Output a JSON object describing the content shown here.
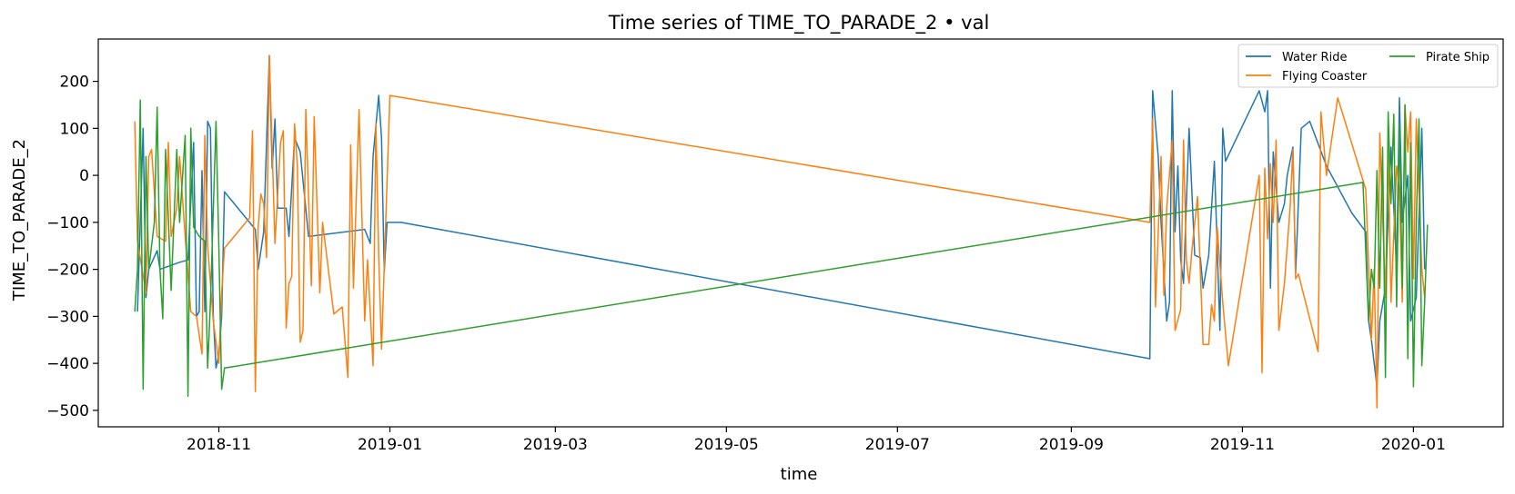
{
  "chart_data": {
    "type": "line",
    "title": "Time series of TIME_TO_PARADE_2 • val",
    "xlabel": "time",
    "ylabel": "TIME_TO_PARADE_2",
    "xlim": [
      "2018-09-19",
      "2020-02-02"
    ],
    "ylim": [
      -535,
      290
    ],
    "x_ticks": [
      "2018-11-01",
      "2019-01-01",
      "2019-03-01",
      "2019-05-01",
      "2019-07-01",
      "2019-09-01",
      "2019-11-01",
      "2020-01-01"
    ],
    "x_tick_labels": [
      "2018-11",
      "2019-01",
      "2019-03",
      "2019-05",
      "2019-07",
      "2019-09",
      "2019-11",
      "2020-01"
    ],
    "y_ticks": [
      200,
      100,
      0,
      -100,
      -200,
      -300,
      -400,
      -500
    ],
    "y_tick_labels": [
      "200",
      "100",
      "0",
      "−100",
      "−200",
      "−300",
      "−400",
      "−500"
    ],
    "legend_position": "top-right",
    "legend_columns": 2,
    "series": [
      {
        "name": "Water Ride",
        "color": "#1f77b4",
        "points": [
          [
            "2018-10-03",
            -290
          ],
          [
            "2018-10-05",
            100
          ],
          [
            "2018-10-06",
            -260
          ],
          [
            "2018-10-07",
            -200
          ],
          [
            "2018-10-10",
            -160
          ],
          [
            "2018-10-11",
            -200
          ],
          [
            "2018-10-18",
            -185
          ],
          [
            "2018-10-21",
            -180
          ],
          [
            "2018-10-23",
            70
          ],
          [
            "2018-10-24",
            -300
          ],
          [
            "2018-10-25",
            -290
          ],
          [
            "2018-10-26",
            10
          ],
          [
            "2018-10-27",
            -290
          ],
          [
            "2018-10-28",
            115
          ],
          [
            "2018-10-29",
            100
          ],
          [
            "2018-10-30",
            -300
          ],
          [
            "2018-10-31",
            -410
          ],
          [
            "2018-11-01",
            -380
          ],
          [
            "2018-11-02",
            -300
          ],
          [
            "2018-11-03",
            -35
          ],
          [
            "2018-11-14",
            -115
          ],
          [
            "2018-11-15",
            -200
          ],
          [
            "2018-11-17",
            -120
          ],
          [
            "2018-11-19",
            255
          ],
          [
            "2018-11-20",
            15
          ],
          [
            "2018-11-21",
            120
          ],
          [
            "2018-11-22",
            -70
          ],
          [
            "2018-11-25",
            -70
          ],
          [
            "2018-11-26",
            -130
          ],
          [
            "2018-11-28",
            80
          ],
          [
            "2018-11-30",
            50
          ],
          [
            "2018-12-03",
            -130
          ],
          [
            "2018-12-23",
            -115
          ],
          [
            "2018-12-25",
            -145
          ],
          [
            "2018-12-26",
            40
          ],
          [
            "2018-12-28",
            170
          ],
          [
            "2018-12-29",
            80
          ],
          [
            "2018-12-30",
            -205
          ],
          [
            "2018-12-31",
            -100
          ],
          [
            "2019-01-05",
            -100
          ],
          [
            "2019-09-29",
            -390
          ],
          [
            "2019-09-30",
            180
          ],
          [
            "2019-10-02",
            40
          ],
          [
            "2019-10-03",
            -100
          ],
          [
            "2019-10-05",
            -310
          ],
          [
            "2019-10-06",
            -270
          ],
          [
            "2019-10-07",
            180
          ],
          [
            "2019-10-08",
            -120
          ],
          [
            "2019-10-09",
            20
          ],
          [
            "2019-10-10",
            -180
          ],
          [
            "2019-10-11",
            -230
          ],
          [
            "2019-10-12",
            -60
          ],
          [
            "2019-10-13",
            100
          ],
          [
            "2019-10-15",
            -170
          ],
          [
            "2019-10-17",
            -175
          ],
          [
            "2019-10-18",
            -240
          ],
          [
            "2019-10-20",
            -170
          ],
          [
            "2019-10-22",
            30
          ],
          [
            "2019-10-24",
            -330
          ],
          [
            "2019-10-25",
            100
          ],
          [
            "2019-10-26",
            30
          ],
          [
            "2019-11-07",
            180
          ],
          [
            "2019-11-09",
            135
          ],
          [
            "2019-11-10",
            180
          ],
          [
            "2019-11-11",
            -240
          ],
          [
            "2019-11-12",
            50
          ],
          [
            "2019-11-14",
            -100
          ],
          [
            "2019-11-16",
            -60
          ],
          [
            "2019-11-17",
            0
          ],
          [
            "2019-11-19",
            60
          ],
          [
            "2019-11-20",
            -210
          ],
          [
            "2019-11-22",
            100
          ],
          [
            "2019-11-25",
            115
          ],
          [
            "2019-12-01",
            20
          ],
          [
            "2019-12-10",
            -80
          ],
          [
            "2019-12-15",
            -120
          ],
          [
            "2019-12-16",
            -310
          ],
          [
            "2019-12-17",
            -350
          ],
          [
            "2019-12-19",
            -450
          ],
          [
            "2019-12-20",
            -310
          ],
          [
            "2019-12-22",
            -240
          ],
          [
            "2019-12-24",
            60
          ],
          [
            "2019-12-26",
            -200
          ],
          [
            "2019-12-27",
            165
          ],
          [
            "2019-12-28",
            -100
          ],
          [
            "2019-12-30",
            0
          ],
          [
            "2019-12-31",
            -310
          ],
          [
            "2020-01-02",
            -260
          ],
          [
            "2020-01-04",
            100
          ],
          [
            "2020-01-05",
            -200
          ]
        ]
      },
      {
        "name": "Flying Coaster",
        "color": "#ff7f0e",
        "points": [
          [
            "2018-10-02",
            115
          ],
          [
            "2018-10-03",
            -140
          ],
          [
            "2018-10-06",
            -250
          ],
          [
            "2018-10-07",
            40
          ],
          [
            "2018-10-08",
            55
          ],
          [
            "2018-10-09",
            -35
          ],
          [
            "2018-10-10",
            -130
          ],
          [
            "2018-10-13",
            -140
          ],
          [
            "2018-10-14",
            70
          ],
          [
            "2018-10-15",
            -130
          ],
          [
            "2018-10-17",
            -70
          ],
          [
            "2018-10-18",
            40
          ],
          [
            "2018-10-20",
            -130
          ],
          [
            "2018-10-22",
            -290
          ],
          [
            "2018-10-24",
            -300
          ],
          [
            "2018-10-26",
            -380
          ],
          [
            "2018-10-27",
            85
          ],
          [
            "2018-10-28",
            -150
          ],
          [
            "2018-10-30",
            -310
          ],
          [
            "2018-11-01",
            -400
          ],
          [
            "2018-11-02",
            -250
          ],
          [
            "2018-11-03",
            -155
          ],
          [
            "2018-11-12",
            -90
          ],
          [
            "2018-11-13",
            95
          ],
          [
            "2018-11-14",
            -460
          ],
          [
            "2018-11-15",
            -110
          ],
          [
            "2018-11-16",
            -40
          ],
          [
            "2018-11-17",
            -60
          ],
          [
            "2018-11-18",
            -175
          ],
          [
            "2018-11-19",
            255
          ],
          [
            "2018-11-21",
            -145
          ],
          [
            "2018-11-23",
            70
          ],
          [
            "2018-11-24",
            95
          ],
          [
            "2018-11-25",
            -325
          ],
          [
            "2018-11-26",
            -230
          ],
          [
            "2018-11-27",
            -215
          ],
          [
            "2018-11-28",
            110
          ],
          [
            "2018-11-29",
            20
          ],
          [
            "2018-11-30",
            -355
          ],
          [
            "2018-12-01",
            -330
          ],
          [
            "2018-12-02",
            140
          ],
          [
            "2018-12-04",
            -235
          ],
          [
            "2018-12-05",
            125
          ],
          [
            "2018-12-07",
            -250
          ],
          [
            "2018-12-08",
            -100
          ],
          [
            "2018-12-12",
            -295
          ],
          [
            "2018-12-15",
            -280
          ],
          [
            "2018-12-17",
            -430
          ],
          [
            "2018-12-18",
            65
          ],
          [
            "2018-12-19",
            -240
          ],
          [
            "2018-12-21",
            140
          ],
          [
            "2018-12-23",
            -310
          ],
          [
            "2018-12-24",
            -180
          ],
          [
            "2018-12-26",
            -405
          ],
          [
            "2018-12-27",
            110
          ],
          [
            "2018-12-28",
            -170
          ],
          [
            "2018-12-29",
            -370
          ],
          [
            "2019-01-01",
            170
          ],
          [
            "2019-09-29",
            -100
          ],
          [
            "2019-09-30",
            120
          ],
          [
            "2019-10-01",
            -280
          ],
          [
            "2019-10-03",
            40
          ],
          [
            "2019-10-04",
            -255
          ],
          [
            "2019-10-05",
            -70
          ],
          [
            "2019-10-07",
            75
          ],
          [
            "2019-10-08",
            -330
          ],
          [
            "2019-10-10",
            -285
          ],
          [
            "2019-10-11",
            75
          ],
          [
            "2019-10-12",
            -180
          ],
          [
            "2019-10-13",
            -230
          ],
          [
            "2019-10-14",
            -160
          ],
          [
            "2019-10-16",
            -45
          ],
          [
            "2019-10-18",
            -360
          ],
          [
            "2019-10-20",
            -360
          ],
          [
            "2019-10-21",
            -275
          ],
          [
            "2019-10-22",
            -310
          ],
          [
            "2019-10-23",
            -110
          ],
          [
            "2019-10-25",
            -270
          ],
          [
            "2019-10-27",
            -405
          ],
          [
            "2019-11-07",
            0
          ],
          [
            "2019-11-08",
            -420
          ],
          [
            "2019-11-09",
            15
          ],
          [
            "2019-11-10",
            -135
          ],
          [
            "2019-11-11",
            25
          ],
          [
            "2019-11-12",
            -100
          ],
          [
            "2019-11-13",
            75
          ],
          [
            "2019-11-14",
            -330
          ],
          [
            "2019-11-16",
            -230
          ],
          [
            "2019-11-18",
            -70
          ],
          [
            "2019-11-19",
            55
          ],
          [
            "2019-11-20",
            -220
          ],
          [
            "2019-11-21",
            -210
          ],
          [
            "2019-11-28",
            -375
          ],
          [
            "2019-11-29",
            135
          ],
          [
            "2019-12-01",
            0
          ],
          [
            "2019-12-05",
            165
          ],
          [
            "2019-12-15",
            -30
          ],
          [
            "2019-12-17",
            -350
          ],
          [
            "2019-12-18",
            -200
          ],
          [
            "2019-12-19",
            -495
          ],
          [
            "2019-12-20",
            90
          ],
          [
            "2019-12-22",
            -260
          ],
          [
            "2019-12-23",
            60
          ],
          [
            "2019-12-24",
            -270
          ],
          [
            "2019-12-26",
            20
          ],
          [
            "2019-12-27",
            -30
          ],
          [
            "2019-12-28",
            -270
          ],
          [
            "2019-12-29",
            150
          ],
          [
            "2019-12-30",
            50
          ],
          [
            "2019-12-31",
            135
          ],
          [
            "2020-01-01",
            -220
          ],
          [
            "2020-01-02",
            120
          ],
          [
            "2020-01-04",
            -200
          ],
          [
            "2020-01-05",
            -260
          ]
        ]
      },
      {
        "name": "Pirate Ship",
        "color": "#2ca02c",
        "points": [
          [
            "2018-10-02",
            -290
          ],
          [
            "2018-10-03",
            -200
          ],
          [
            "2018-10-04",
            160
          ],
          [
            "2018-10-05",
            -455
          ],
          [
            "2018-10-06",
            40
          ],
          [
            "2018-10-07",
            -200
          ],
          [
            "2018-10-09",
            -100
          ],
          [
            "2018-10-10",
            145
          ],
          [
            "2018-10-11",
            -200
          ],
          [
            "2018-10-12",
            -305
          ],
          [
            "2018-10-13",
            55
          ],
          [
            "2018-10-15",
            -245
          ],
          [
            "2018-10-17",
            55
          ],
          [
            "2018-10-18",
            -100
          ],
          [
            "2018-10-20",
            85
          ],
          [
            "2018-10-21",
            -470
          ],
          [
            "2018-10-22",
            100
          ],
          [
            "2018-10-23",
            -110
          ],
          [
            "2018-10-25",
            -130
          ],
          [
            "2018-10-27",
            -140
          ],
          [
            "2018-10-28",
            -410
          ],
          [
            "2018-10-29",
            -270
          ],
          [
            "2018-10-31",
            115
          ],
          [
            "2018-11-01",
            -150
          ],
          [
            "2018-11-02",
            -455
          ],
          [
            "2018-11-03",
            -410
          ],
          [
            "2019-12-14",
            -15
          ],
          [
            "2019-12-16",
            -310
          ],
          [
            "2019-12-17",
            -200
          ],
          [
            "2019-12-18",
            -240
          ],
          [
            "2019-12-19",
            10
          ],
          [
            "2019-12-20",
            -240
          ],
          [
            "2019-12-21",
            60
          ],
          [
            "2019-12-22",
            -430
          ],
          [
            "2019-12-23",
            135
          ],
          [
            "2019-12-24",
            -60
          ],
          [
            "2019-12-25",
            130
          ],
          [
            "2019-12-26",
            -280
          ],
          [
            "2019-12-27",
            110
          ],
          [
            "2019-12-28",
            -240
          ],
          [
            "2019-12-29",
            150
          ],
          [
            "2019-12-30",
            -390
          ],
          [
            "2019-12-31",
            70
          ],
          [
            "2020-01-01",
            -450
          ],
          [
            "2020-01-02",
            -100
          ],
          [
            "2020-01-03",
            120
          ],
          [
            "2020-01-04",
            -405
          ],
          [
            "2020-01-05",
            -270
          ],
          [
            "2020-01-06",
            -105
          ]
        ]
      }
    ]
  }
}
